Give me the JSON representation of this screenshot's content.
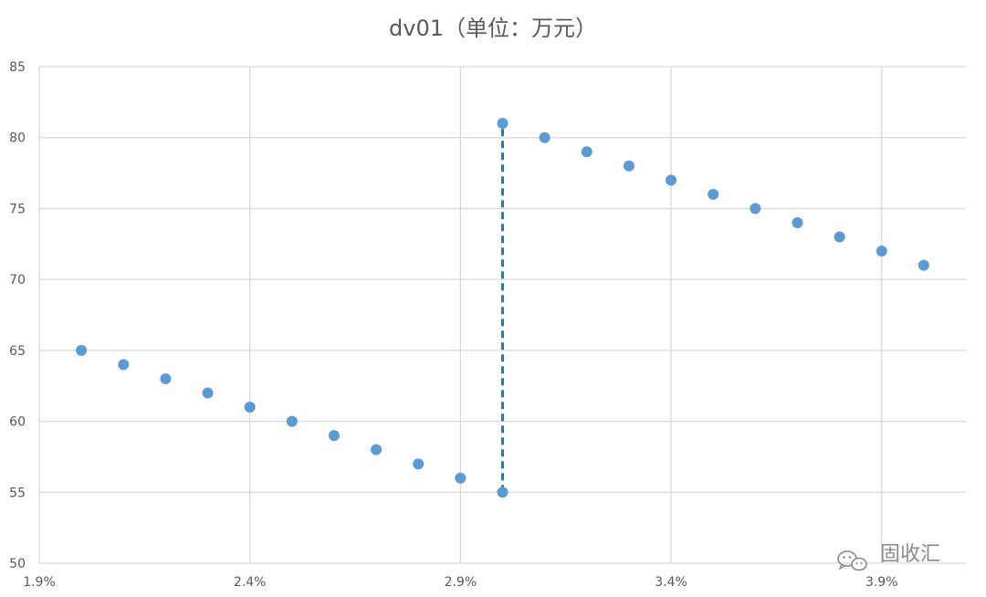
{
  "chart_data": {
    "type": "scatter",
    "title": "dv01（单位：万元）",
    "xlabel": "",
    "ylabel": "",
    "xlim": [
      0.019,
      0.041
    ],
    "ylim": [
      50,
      85
    ],
    "x_ticks": [
      0.019,
      0.024,
      0.029,
      0.034,
      0.039
    ],
    "x_tick_labels": [
      "1.9%",
      "2.4%",
      "2.9%",
      "3.4%",
      "3.9%"
    ],
    "y_ticks": [
      50,
      55,
      60,
      65,
      70,
      75,
      80,
      85
    ],
    "y_tick_labels": [
      "50",
      "55",
      "60",
      "65",
      "70",
      "75",
      "80",
      "85"
    ],
    "grid": true,
    "point_color": "#5b9bd5",
    "series": [
      {
        "x": [
          0.02,
          0.021,
          0.022,
          0.023,
          0.024,
          0.025,
          0.026,
          0.027,
          0.028,
          0.029,
          0.03,
          0.03,
          0.031,
          0.032,
          0.033,
          0.034,
          0.035,
          0.036,
          0.037,
          0.038,
          0.039,
          0.04
        ],
        "y": [
          65,
          64,
          63,
          62,
          61,
          60,
          59,
          58,
          57,
          56,
          55,
          81,
          80,
          79,
          78,
          77,
          76,
          75,
          74,
          73,
          72,
          71
        ]
      }
    ],
    "annotations": [
      {
        "type": "dashed-vertical-line",
        "x": 0.03,
        "y_from": 55,
        "y_to": 81,
        "color": "#2e75b6"
      }
    ]
  },
  "watermark": {
    "text": "固收汇",
    "icon": "wechat-icon"
  }
}
